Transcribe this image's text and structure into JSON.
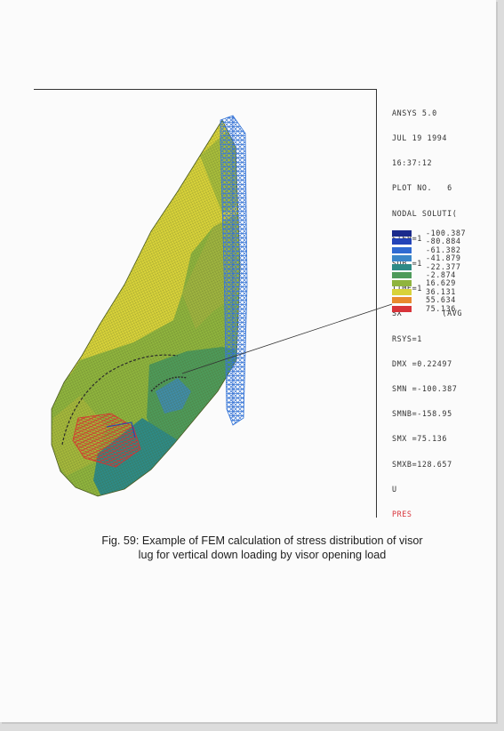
{
  "ansys_header": {
    "lines": [
      "ANSYS 5.0",
      "JUL 19 1994",
      "16:37:12",
      "PLOT NO.   6",
      "NODAL SOLUTI(",
      "STEP=1",
      "SUB =1",
      "TIME=1",
      "SX        (AVG",
      "RSYS=1",
      "DMX =0.22497",
      "SMN =-100.387",
      "SMNB=-158.95",
      "SMX =75.136",
      "SMXB=128.657",
      "U",
      "PRES"
    ]
  },
  "legend": {
    "values": [
      "-100.387",
      "-80.884",
      "-61.382",
      "-41.879",
      "-22.377",
      "-2.874",
      "16.629",
      "36.131",
      "55.634",
      "75.136"
    ],
    "colors": [
      "#1b2a8c",
      "#2343b8",
      "#2f6ad2",
      "#3a86c8",
      "#2e8a86",
      "#4e9a5a",
      "#8fb43e",
      "#d8d23a",
      "#e88a2e",
      "#d8343a"
    ]
  },
  "colors": {
    "mesh_blue": "#3a78d8",
    "mesh_red": "#d83030",
    "mesh_black": "#2a2a2a"
  },
  "caption": {
    "line1": "Fig. 59: Example of FEM calculation of stress distribution of visor",
    "line2": "lug for vertical down loading by visor opening load"
  }
}
